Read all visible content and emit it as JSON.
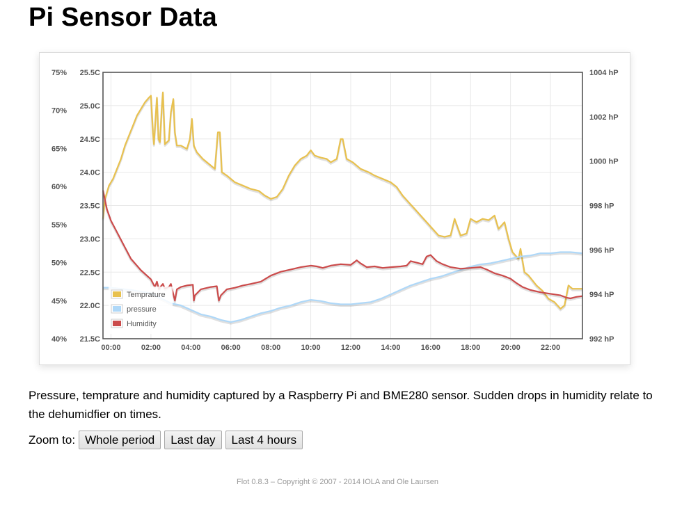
{
  "page": {
    "title": "Pi Sensor Data",
    "description": "Pressure, temprature and humidity captured by a Raspberry Pi and BME280 sensor. Sudden drops in humidity relate to the dehumidfier on times.",
    "zoom_label": "Zoom to:",
    "zoom_buttons": [
      "Whole period",
      "Last day",
      "Last 4 hours"
    ],
    "footer": "Flot 0.8.3 – Copyright © 2007 - 2014 IOLA and Ole Laursen"
  },
  "chart_data": {
    "type": "line",
    "x_unit": "hours",
    "xlim": [
      -0.4,
      23.6
    ],
    "xticks": [
      "00:00",
      "02:00",
      "04:00",
      "06:00",
      "08:00",
      "10:00",
      "12:00",
      "14:00",
      "16:00",
      "18:00",
      "20:00",
      "22:00"
    ],
    "axes": {
      "humidity": {
        "ylim": [
          40,
          75
        ],
        "ticks": [
          "40%",
          "45%",
          "50%",
          "55%",
          "60%",
          "65%",
          "70%",
          "75%"
        ]
      },
      "temperature": {
        "ylim": [
          21.5,
          25.5
        ],
        "ticks": [
          "21.5C",
          "22.0C",
          "22.5C",
          "23.0C",
          "23.5C",
          "24.0C",
          "24.5C",
          "25.0C",
          "25.5C"
        ]
      },
      "pressure": {
        "ylim": [
          992,
          1004
        ],
        "ticks": [
          "992 hP",
          "994 hP",
          "996 hP",
          "998 hP",
          "1000 hP",
          "1002 hP",
          "1004 hP"
        ]
      }
    },
    "legend_position": "bottom-left",
    "grid": true,
    "series": [
      {
        "name": "Temprature",
        "axis": "temperature",
        "color": "#e8c14f",
        "points": [
          [
            -0.4,
            23.3
          ],
          [
            -0.3,
            23.6
          ],
          [
            -0.1,
            23.8
          ],
          [
            0.1,
            23.9
          ],
          [
            0.3,
            24.05
          ],
          [
            0.5,
            24.2
          ],
          [
            0.7,
            24.4
          ],
          [
            0.9,
            24.55
          ],
          [
            1.1,
            24.7
          ],
          [
            1.3,
            24.85
          ],
          [
            1.5,
            24.95
          ],
          [
            1.7,
            25.05
          ],
          [
            1.9,
            25.12
          ],
          [
            2.0,
            25.15
          ],
          [
            2.1,
            24.6
          ],
          [
            2.15,
            24.42
          ],
          [
            2.25,
            24.9
          ],
          [
            2.3,
            25.12
          ],
          [
            2.38,
            24.5
          ],
          [
            2.45,
            24.45
          ],
          [
            2.55,
            25.0
          ],
          [
            2.6,
            25.2
          ],
          [
            2.7,
            24.42
          ],
          [
            2.9,
            24.48
          ],
          [
            3.0,
            24.9
          ],
          [
            3.12,
            25.1
          ],
          [
            3.2,
            24.6
          ],
          [
            3.3,
            24.4
          ],
          [
            3.5,
            24.4
          ],
          [
            3.8,
            24.35
          ],
          [
            3.95,
            24.5
          ],
          [
            4.05,
            24.8
          ],
          [
            4.15,
            24.4
          ],
          [
            4.3,
            24.3
          ],
          [
            4.6,
            24.2
          ],
          [
            5.0,
            24.1
          ],
          [
            5.2,
            24.05
          ],
          [
            5.35,
            24.6
          ],
          [
            5.45,
            24.6
          ],
          [
            5.55,
            24.0
          ],
          [
            5.8,
            23.95
          ],
          [
            6.2,
            23.85
          ],
          [
            6.6,
            23.8
          ],
          [
            7.0,
            23.75
          ],
          [
            7.4,
            23.72
          ],
          [
            7.7,
            23.65
          ],
          [
            8.0,
            23.6
          ],
          [
            8.3,
            23.63
          ],
          [
            8.6,
            23.75
          ],
          [
            8.9,
            23.95
          ],
          [
            9.2,
            24.1
          ],
          [
            9.5,
            24.2
          ],
          [
            9.8,
            24.25
          ],
          [
            10.0,
            24.33
          ],
          [
            10.2,
            24.25
          ],
          [
            10.5,
            24.22
          ],
          [
            10.8,
            24.2
          ],
          [
            11.0,
            24.15
          ],
          [
            11.3,
            24.2
          ],
          [
            11.5,
            24.5
          ],
          [
            11.6,
            24.5
          ],
          [
            11.8,
            24.2
          ],
          [
            12.1,
            24.15
          ],
          [
            12.5,
            24.05
          ],
          [
            12.9,
            24.0
          ],
          [
            13.2,
            23.95
          ],
          [
            13.6,
            23.9
          ],
          [
            14.0,
            23.85
          ],
          [
            14.3,
            23.78
          ],
          [
            14.6,
            23.65
          ],
          [
            14.9,
            23.55
          ],
          [
            15.2,
            23.45
          ],
          [
            15.5,
            23.35
          ],
          [
            15.8,
            23.25
          ],
          [
            16.1,
            23.15
          ],
          [
            16.4,
            23.05
          ],
          [
            16.7,
            23.03
          ],
          [
            17.0,
            23.05
          ],
          [
            17.2,
            23.3
          ],
          [
            17.5,
            23.05
          ],
          [
            17.8,
            23.08
          ],
          [
            18.0,
            23.3
          ],
          [
            18.3,
            23.25
          ],
          [
            18.6,
            23.3
          ],
          [
            18.9,
            23.28
          ],
          [
            19.2,
            23.35
          ],
          [
            19.4,
            23.15
          ],
          [
            19.7,
            23.25
          ],
          [
            19.9,
            23.0
          ],
          [
            20.1,
            22.8
          ],
          [
            20.4,
            22.7
          ],
          [
            20.5,
            22.85
          ],
          [
            20.7,
            22.5
          ],
          [
            20.9,
            22.45
          ],
          [
            21.3,
            22.3
          ],
          [
            21.6,
            22.22
          ],
          [
            21.9,
            22.1
          ],
          [
            22.2,
            22.05
          ],
          [
            22.5,
            21.95
          ],
          [
            22.7,
            22.0
          ],
          [
            22.9,
            22.3
          ],
          [
            23.1,
            22.25
          ],
          [
            23.3,
            22.25
          ],
          [
            23.6,
            22.25
          ]
        ]
      },
      {
        "name": "pressure",
        "axis": "pressure",
        "color": "#afd8f8",
        "points": [
          [
            -0.4,
            994.3
          ],
          [
            0.0,
            994.3
          ],
          [
            1.0,
            994.2
          ],
          [
            2.0,
            994.05
          ],
          [
            3.0,
            993.6
          ],
          [
            3.5,
            993.5
          ],
          [
            4.0,
            993.3
          ],
          [
            4.5,
            993.1
          ],
          [
            5.0,
            993.0
          ],
          [
            5.5,
            992.85
          ],
          [
            6.0,
            992.75
          ],
          [
            6.5,
            992.85
          ],
          [
            7.0,
            993.0
          ],
          [
            7.5,
            993.15
          ],
          [
            8.0,
            993.25
          ],
          [
            8.5,
            993.4
          ],
          [
            9.0,
            993.5
          ],
          [
            9.5,
            993.65
          ],
          [
            10.0,
            993.75
          ],
          [
            10.5,
            993.7
          ],
          [
            11.0,
            993.6
          ],
          [
            11.5,
            993.55
          ],
          [
            12.0,
            993.55
          ],
          [
            12.5,
            993.6
          ],
          [
            13.0,
            993.65
          ],
          [
            13.5,
            993.8
          ],
          [
            14.0,
            994.0
          ],
          [
            14.5,
            994.2
          ],
          [
            15.0,
            994.4
          ],
          [
            15.5,
            994.55
          ],
          [
            16.0,
            994.7
          ],
          [
            16.5,
            994.8
          ],
          [
            17.0,
            994.95
          ],
          [
            17.5,
            995.1
          ],
          [
            18.0,
            995.25
          ],
          [
            18.5,
            995.35
          ],
          [
            19.0,
            995.4
          ],
          [
            19.5,
            995.5
          ],
          [
            20.0,
            995.6
          ],
          [
            20.5,
            995.7
          ],
          [
            21.0,
            995.75
          ],
          [
            21.5,
            995.85
          ],
          [
            22.0,
            995.85
          ],
          [
            22.5,
            995.9
          ],
          [
            23.0,
            995.9
          ],
          [
            23.6,
            995.85
          ]
        ]
      },
      {
        "name": "Humidity",
        "axis": "humidity",
        "color": "#cb4b4b",
        "points": [
          [
            -0.4,
            59.5
          ],
          [
            -0.2,
            57.0
          ],
          [
            0.0,
            55.5
          ],
          [
            0.3,
            54.0
          ],
          [
            0.6,
            52.5
          ],
          [
            1.0,
            50.5
          ],
          [
            1.5,
            49.0
          ],
          [
            2.0,
            47.8
          ],
          [
            2.2,
            46.8
          ],
          [
            2.3,
            47.5
          ],
          [
            2.4,
            46.5
          ],
          [
            2.5,
            46.9
          ],
          [
            2.6,
            47.2
          ],
          [
            2.7,
            46.6
          ],
          [
            2.9,
            46.8
          ],
          [
            3.0,
            47.2
          ],
          [
            3.2,
            45.0
          ],
          [
            3.3,
            46.5
          ],
          [
            3.5,
            46.8
          ],
          [
            3.8,
            47.0
          ],
          [
            4.1,
            47.1
          ],
          [
            4.15,
            45.0
          ],
          [
            4.2,
            45.7
          ],
          [
            4.5,
            46.5
          ],
          [
            5.0,
            46.8
          ],
          [
            5.3,
            46.9
          ],
          [
            5.4,
            45.0
          ],
          [
            5.5,
            45.7
          ],
          [
            5.8,
            46.5
          ],
          [
            6.2,
            46.7
          ],
          [
            6.6,
            47.0
          ],
          [
            7.0,
            47.2
          ],
          [
            7.5,
            47.5
          ],
          [
            8.0,
            48.3
          ],
          [
            8.5,
            48.8
          ],
          [
            9.0,
            49.1
          ],
          [
            9.5,
            49.4
          ],
          [
            10.0,
            49.6
          ],
          [
            10.3,
            49.5
          ],
          [
            10.6,
            49.3
          ],
          [
            11.0,
            49.6
          ],
          [
            11.5,
            49.8
          ],
          [
            12.0,
            49.7
          ],
          [
            12.3,
            50.3
          ],
          [
            12.5,
            49.9
          ],
          [
            12.8,
            49.4
          ],
          [
            13.2,
            49.5
          ],
          [
            13.6,
            49.3
          ],
          [
            14.0,
            49.4
          ],
          [
            14.5,
            49.5
          ],
          [
            14.8,
            49.6
          ],
          [
            15.0,
            50.2
          ],
          [
            15.3,
            50.0
          ],
          [
            15.6,
            49.8
          ],
          [
            15.8,
            50.8
          ],
          [
            16.0,
            51.0
          ],
          [
            16.3,
            50.2
          ],
          [
            16.6,
            49.8
          ],
          [
            17.0,
            49.4
          ],
          [
            17.5,
            49.2
          ],
          [
            18.0,
            49.3
          ],
          [
            18.5,
            49.4
          ],
          [
            18.8,
            49.1
          ],
          [
            19.2,
            48.6
          ],
          [
            19.6,
            48.3
          ],
          [
            20.0,
            47.9
          ],
          [
            20.3,
            47.3
          ],
          [
            20.6,
            46.8
          ],
          [
            21.0,
            46.4
          ],
          [
            21.5,
            46.1
          ],
          [
            22.0,
            45.9
          ],
          [
            22.5,
            45.7
          ],
          [
            22.8,
            45.4
          ],
          [
            23.0,
            45.3
          ],
          [
            23.3,
            45.5
          ],
          [
            23.6,
            45.6
          ]
        ]
      }
    ]
  }
}
